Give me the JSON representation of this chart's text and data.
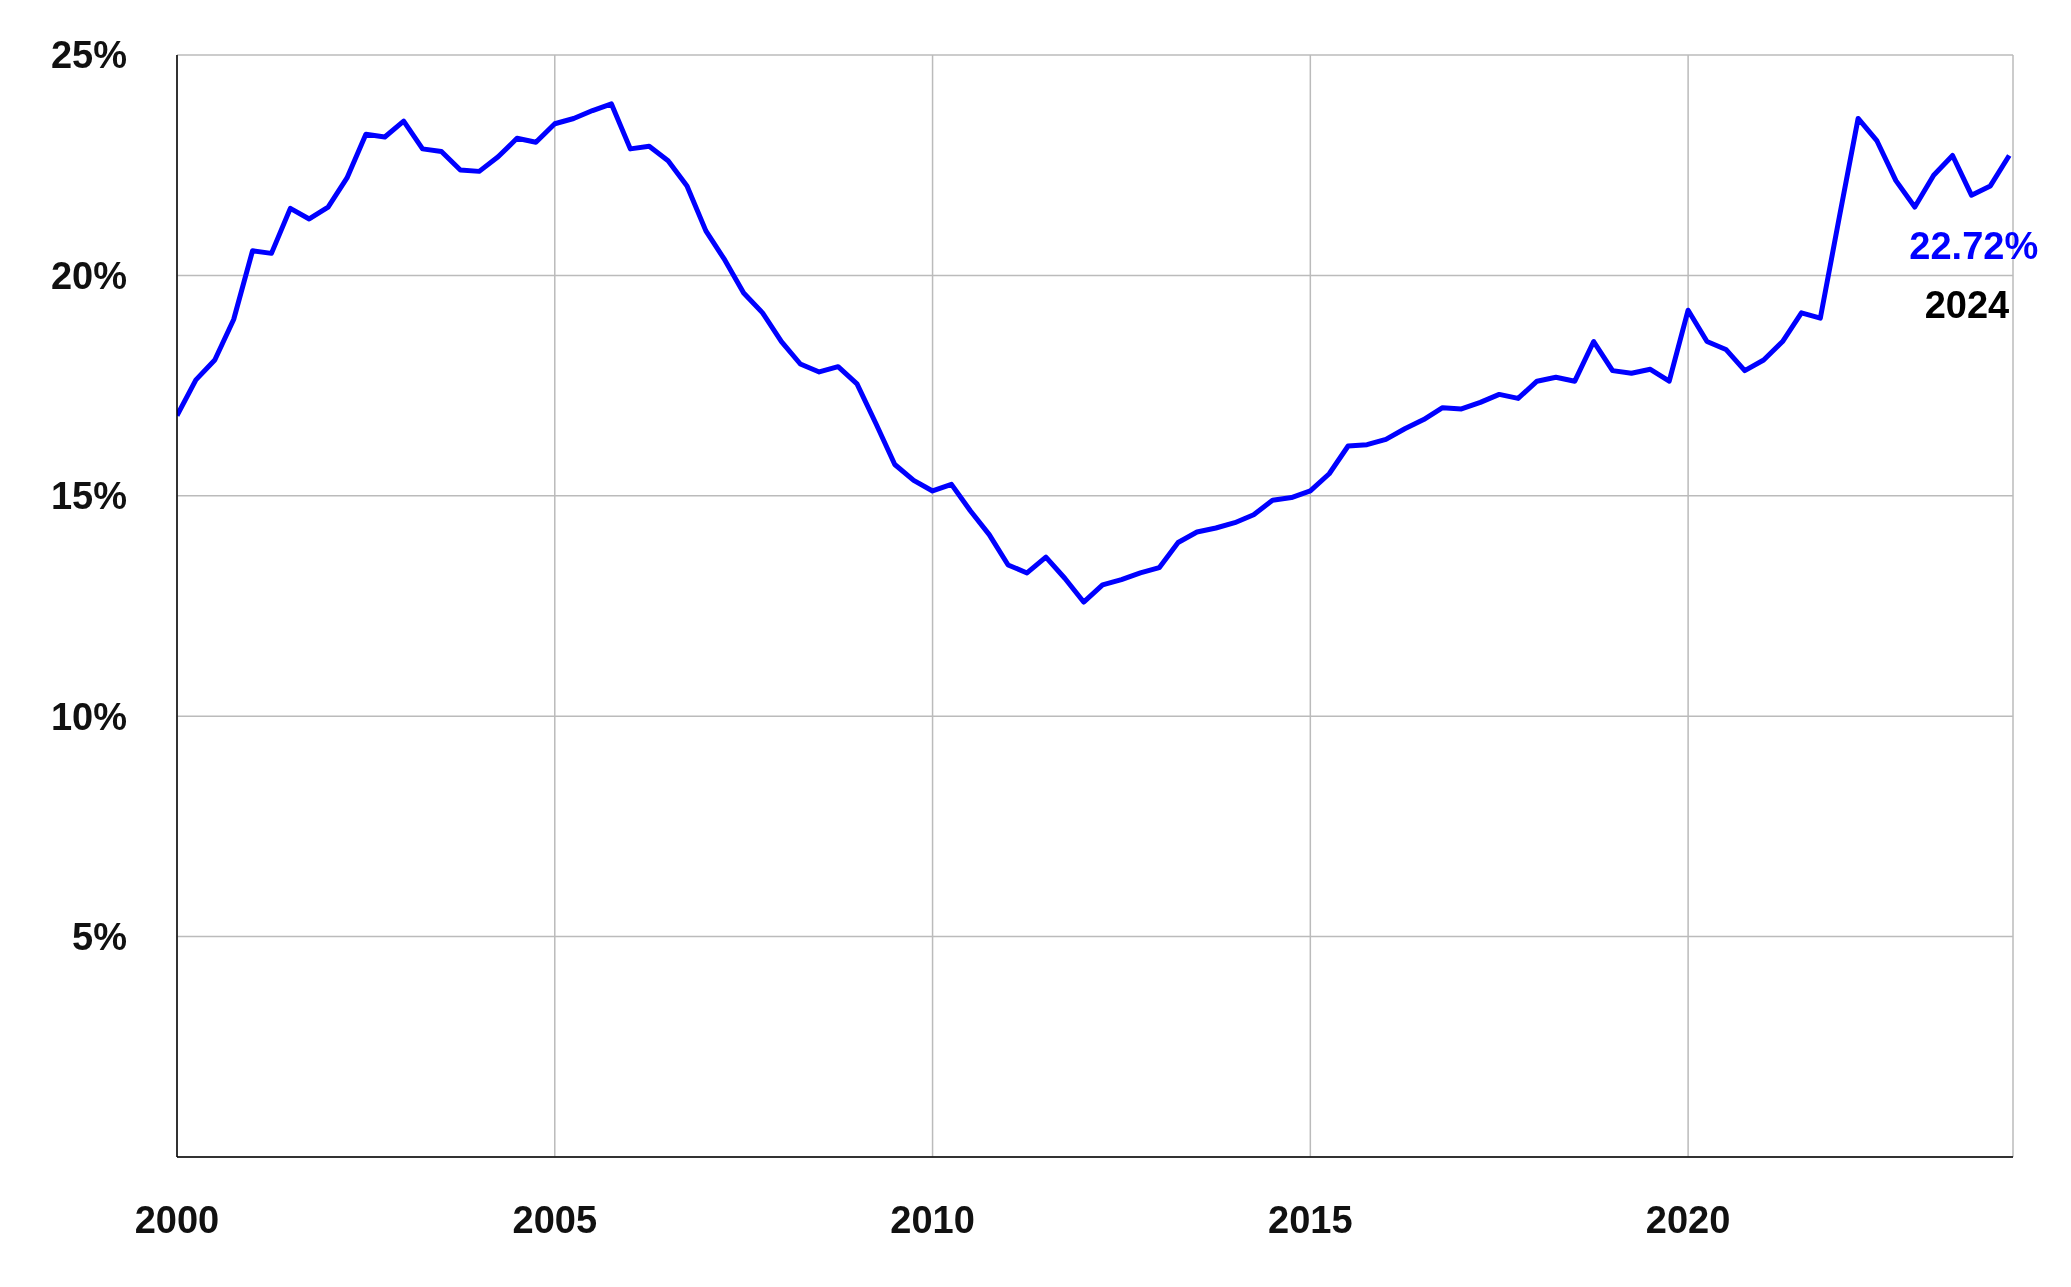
{
  "chart_data": {
    "type": "line",
    "x": [
      2000,
      2000.25,
      2000.5,
      2000.75,
      2001,
      2001.25,
      2001.5,
      2001.75,
      2002,
      2002.25,
      2002.5,
      2002.75,
      2003,
      2003.25,
      2003.5,
      2003.75,
      2004,
      2004.25,
      2004.5,
      2004.75,
      2005,
      2005.25,
      2005.5,
      2005.75,
      2006,
      2006.25,
      2006.5,
      2006.75,
      2007,
      2007.25,
      2007.5,
      2007.75,
      2008,
      2008.25,
      2008.5,
      2008.75,
      2009,
      2009.25,
      2009.5,
      2009.75,
      2010,
      2010.25,
      2010.5,
      2010.75,
      2011,
      2011.25,
      2011.5,
      2011.75,
      2012,
      2012.25,
      2012.5,
      2012.75,
      2013,
      2013.25,
      2013.5,
      2013.75,
      2014,
      2014.25,
      2014.5,
      2014.75,
      2015,
      2015.25,
      2015.5,
      2015.75,
      2016,
      2016.25,
      2016.5,
      2016.75,
      2017,
      2017.25,
      2017.5,
      2017.75,
      2018,
      2018.25,
      2018.5,
      2018.75,
      2019,
      2019.25,
      2019.5,
      2019.75,
      2020,
      2020.25,
      2020.5,
      2020.75,
      2021,
      2021.25,
      2021.5,
      2021.75,
      2022,
      2022.25,
      2022.5,
      2022.75,
      2023,
      2023.25,
      2023.5,
      2023.75,
      2024,
      2024.25
    ],
    "series": [
      {
        "color": "#0000ff",
        "values": [
          16.82,
          17.63,
          18.08,
          19.0,
          20.56,
          20.5,
          21.52,
          21.28,
          21.55,
          22.21,
          23.2,
          23.14,
          23.5,
          22.87,
          22.81,
          22.39,
          22.36,
          22.69,
          23.11,
          23.02,
          23.44,
          23.56,
          23.74,
          23.89,
          22.87,
          22.93,
          22.6,
          22.03,
          21.01,
          20.35,
          19.6,
          19.15,
          18.5,
          17.99,
          17.81,
          17.93,
          17.54,
          16.64,
          15.71,
          15.35,
          15.11,
          15.26,
          14.66,
          14.12,
          13.43,
          13.25,
          13.61,
          13.13,
          12.59,
          12.98,
          13.1,
          13.25,
          13.37,
          13.94,
          14.18,
          14.27,
          14.39,
          14.57,
          14.9,
          14.96,
          15.11,
          15.5,
          16.13,
          16.16,
          16.28,
          16.52,
          16.73,
          17.0,
          16.97,
          17.12,
          17.3,
          17.21,
          17.6,
          17.69,
          17.6,
          18.5,
          17.84,
          17.78,
          17.87,
          17.6,
          19.21,
          18.5,
          18.32,
          17.84,
          18.08,
          18.5,
          19.15,
          19.03,
          21.31,
          23.56,
          23.05,
          22.15,
          21.55,
          22.27,
          22.72,
          21.82,
          22.03,
          22.72
        ]
      }
    ],
    "xlim": [
      2000,
      2024.3
    ],
    "xticks": [
      2000,
      2005,
      2010,
      2015,
      2020
    ],
    "ylim": [
      0,
      25
    ],
    "yticks": [
      {
        "value": 5,
        "label": "5%"
      },
      {
        "value": 10,
        "label": "10%"
      },
      {
        "value": 15,
        "label": "15%"
      },
      {
        "value": 20,
        "label": "20%"
      },
      {
        "value": 25,
        "label": "25%"
      }
    ],
    "annotations": [
      {
        "text": "22.72%",
        "x": 2024.25,
        "y": 22.72
      },
      "2024"
    ],
    "grid": true,
    "line_style": "solid",
    "legend": false
  }
}
